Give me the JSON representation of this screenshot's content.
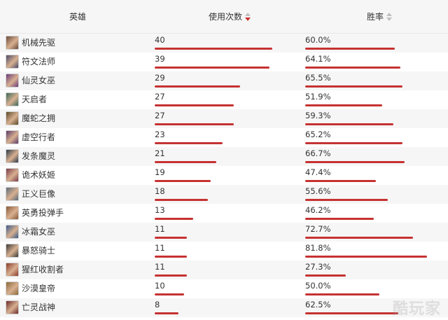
{
  "table": {
    "columns": {
      "hero": "英雄",
      "uses": "使用次数",
      "winrate": "胜率"
    },
    "max_uses": 40,
    "rows": [
      {
        "name": "机械先驱",
        "uses": "40",
        "uses_value": 40,
        "winrate": "60.0%",
        "winrate_value": 60.0,
        "avatar_color": "#6a4a3a"
      },
      {
        "name": "符文法师",
        "uses": "39",
        "uses_value": 39,
        "winrate": "64.1%",
        "winrate_value": 64.1,
        "avatar_color": "#4a4a6a"
      },
      {
        "name": "仙灵女巫",
        "uses": "29",
        "uses_value": 29,
        "winrate": "65.5%",
        "winrate_value": 65.5,
        "avatar_color": "#6a3a7a"
      },
      {
        "name": "天启者",
        "uses": "27",
        "uses_value": 27,
        "winrate": "51.9%",
        "winrate_value": 51.9,
        "avatar_color": "#3a6a5a"
      },
      {
        "name": "魔蛇之拥",
        "uses": "27",
        "uses_value": 27,
        "winrate": "59.3%",
        "winrate_value": 59.3,
        "avatar_color": "#5a4a2a"
      },
      {
        "name": "虚空行者",
        "uses": "23",
        "uses_value": 23,
        "winrate": "65.2%",
        "winrate_value": 65.2,
        "avatar_color": "#5a3a6a"
      },
      {
        "name": "发条魔灵",
        "uses": "21",
        "uses_value": 21,
        "winrate": "66.7%",
        "winrate_value": 66.7,
        "avatar_color": "#2a3a4a"
      },
      {
        "name": "诡术妖姬",
        "uses": "19",
        "uses_value": 19,
        "winrate": "47.4%",
        "winrate_value": 47.4,
        "avatar_color": "#7a3a4a"
      },
      {
        "name": "正义巨像",
        "uses": "18",
        "uses_value": 18,
        "winrate": "55.6%",
        "winrate_value": 55.6,
        "avatar_color": "#5a6a7a"
      },
      {
        "name": "英勇投弹手",
        "uses": "13",
        "uses_value": 13,
        "winrate": "46.2%",
        "winrate_value": 46.2,
        "avatar_color": "#8a5a3a"
      },
      {
        "name": "冰霜女巫",
        "uses": "11",
        "uses_value": 11,
        "winrate": "72.7%",
        "winrate_value": 72.7,
        "avatar_color": "#3a5a8a"
      },
      {
        "name": "暴怒骑士",
        "uses": "11",
        "uses_value": 11,
        "winrate": "81.8%",
        "winrate_value": 81.8,
        "avatar_color": "#3a3a3a"
      },
      {
        "name": "猩红收割者",
        "uses": "11",
        "uses_value": 11,
        "winrate": "27.3%",
        "winrate_value": 27.3,
        "avatar_color": "#8a3a2a"
      },
      {
        "name": "沙漠皇帝",
        "uses": "10",
        "uses_value": 10,
        "winrate": "50.0%",
        "winrate_value": 50.0,
        "avatar_color": "#8a6a3a"
      },
      {
        "name": "亡灵战神",
        "uses": "8",
        "uses_value": 8,
        "winrate": "62.5%",
        "winrate_value": 62.5,
        "avatar_color": "#6a2a2a"
      }
    ]
  },
  "watermark": "酷玩家"
}
